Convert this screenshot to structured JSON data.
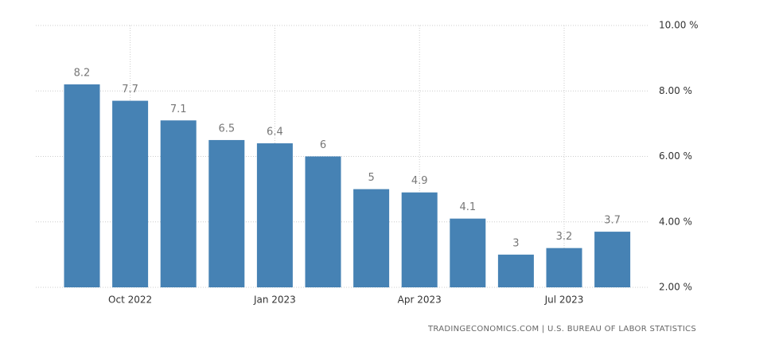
{
  "chart_data": {
    "type": "bar",
    "categories": [
      null,
      "Oct 2022",
      null,
      null,
      "Jan 2023",
      null,
      null,
      "Apr 2023",
      null,
      null,
      "Jul 2023",
      null
    ],
    "values": [
      8.2,
      7.7,
      7.1,
      6.5,
      6.4,
      6,
      5,
      4.9,
      4.1,
      3,
      3.2,
      3.7
    ],
    "color": "#4682b4",
    "ylim": [
      2,
      10
    ],
    "yticks": [
      {
        "value": 2,
        "label": "2.00 %"
      },
      {
        "value": 4,
        "label": "4.00 %"
      },
      {
        "value": 6,
        "label": "6.00 %"
      },
      {
        "value": 8,
        "label": "8.00 %"
      },
      {
        "value": 10,
        "label": "10.00 %"
      }
    ],
    "grid": true,
    "source": "TRADINGECONOMICS.COM | U.S. BUREAU OF LABOR STATISTICS"
  }
}
